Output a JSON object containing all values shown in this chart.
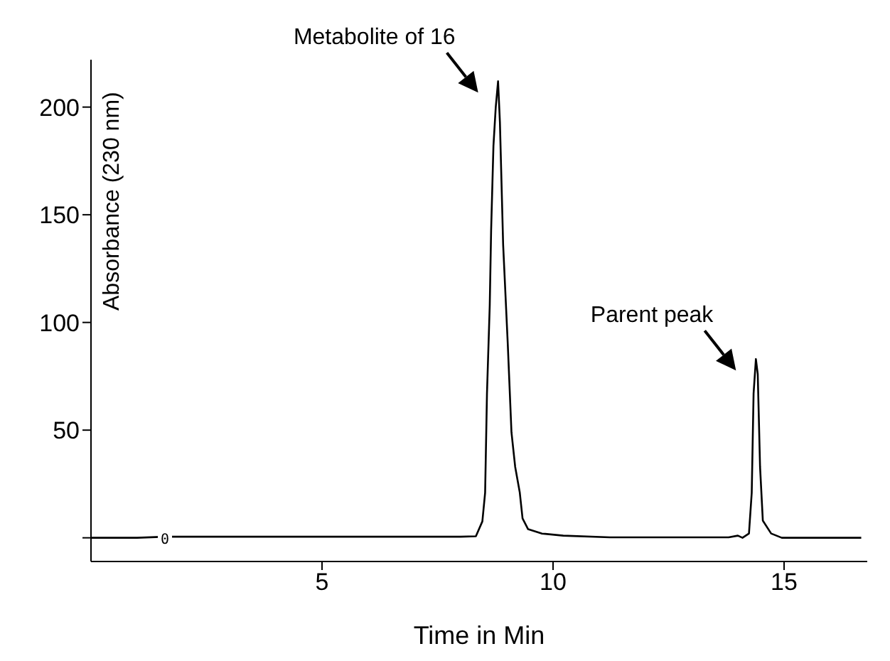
{
  "chart_data": {
    "type": "line",
    "xlabel": "Time in Min",
    "ylabel": "Absorbance (230 nm)",
    "x": [
      0,
      1.0,
      1.6,
      2.0,
      5.0,
      8.0,
      8.33,
      8.47,
      8.53,
      8.57,
      8.63,
      8.66,
      8.71,
      8.76,
      8.81,
      8.85,
      8.92,
      9.02,
      9.1,
      9.18,
      9.28,
      9.34,
      9.46,
      9.75,
      10.22,
      11.23,
      13.8,
      14.0,
      14.1,
      14.24,
      14.3,
      14.34,
      14.39,
      14.43,
      14.48,
      14.54,
      14.72,
      14.95,
      16.67
    ],
    "series": [
      {
        "color": "#000000",
        "values": [
          0,
          0,
          0.5,
          0.5,
          0.5,
          0.5,
          0.7,
          7.6,
          21,
          67,
          108,
          143,
          182,
          200,
          212,
          193,
          136,
          90,
          49,
          33,
          21,
          9,
          4,
          2,
          1,
          0.2,
          0.2,
          1,
          0,
          2,
          21,
          67,
          83,
          76,
          33,
          8,
          2,
          0,
          0
        ]
      }
    ],
    "xlim": [
      0,
      16.8
    ],
    "xticks": [
      5,
      10,
      15
    ],
    "ylim": [
      -11,
      222
    ],
    "yticks": [
      {
        "value": 0,
        "label": null
      },
      50,
      100,
      150,
      200
    ],
    "marker": "none",
    "line_style": "solid",
    "grid": false,
    "legend": false,
    "annotations": [
      {
        "text": "Metabolite of 16",
        "x": 8.81,
        "y": 212
      },
      {
        "text": "Parent peak",
        "x": 14.39,
        "y": 83
      },
      {
        "text": "0",
        "x": 1.6,
        "y": 0
      }
    ]
  }
}
